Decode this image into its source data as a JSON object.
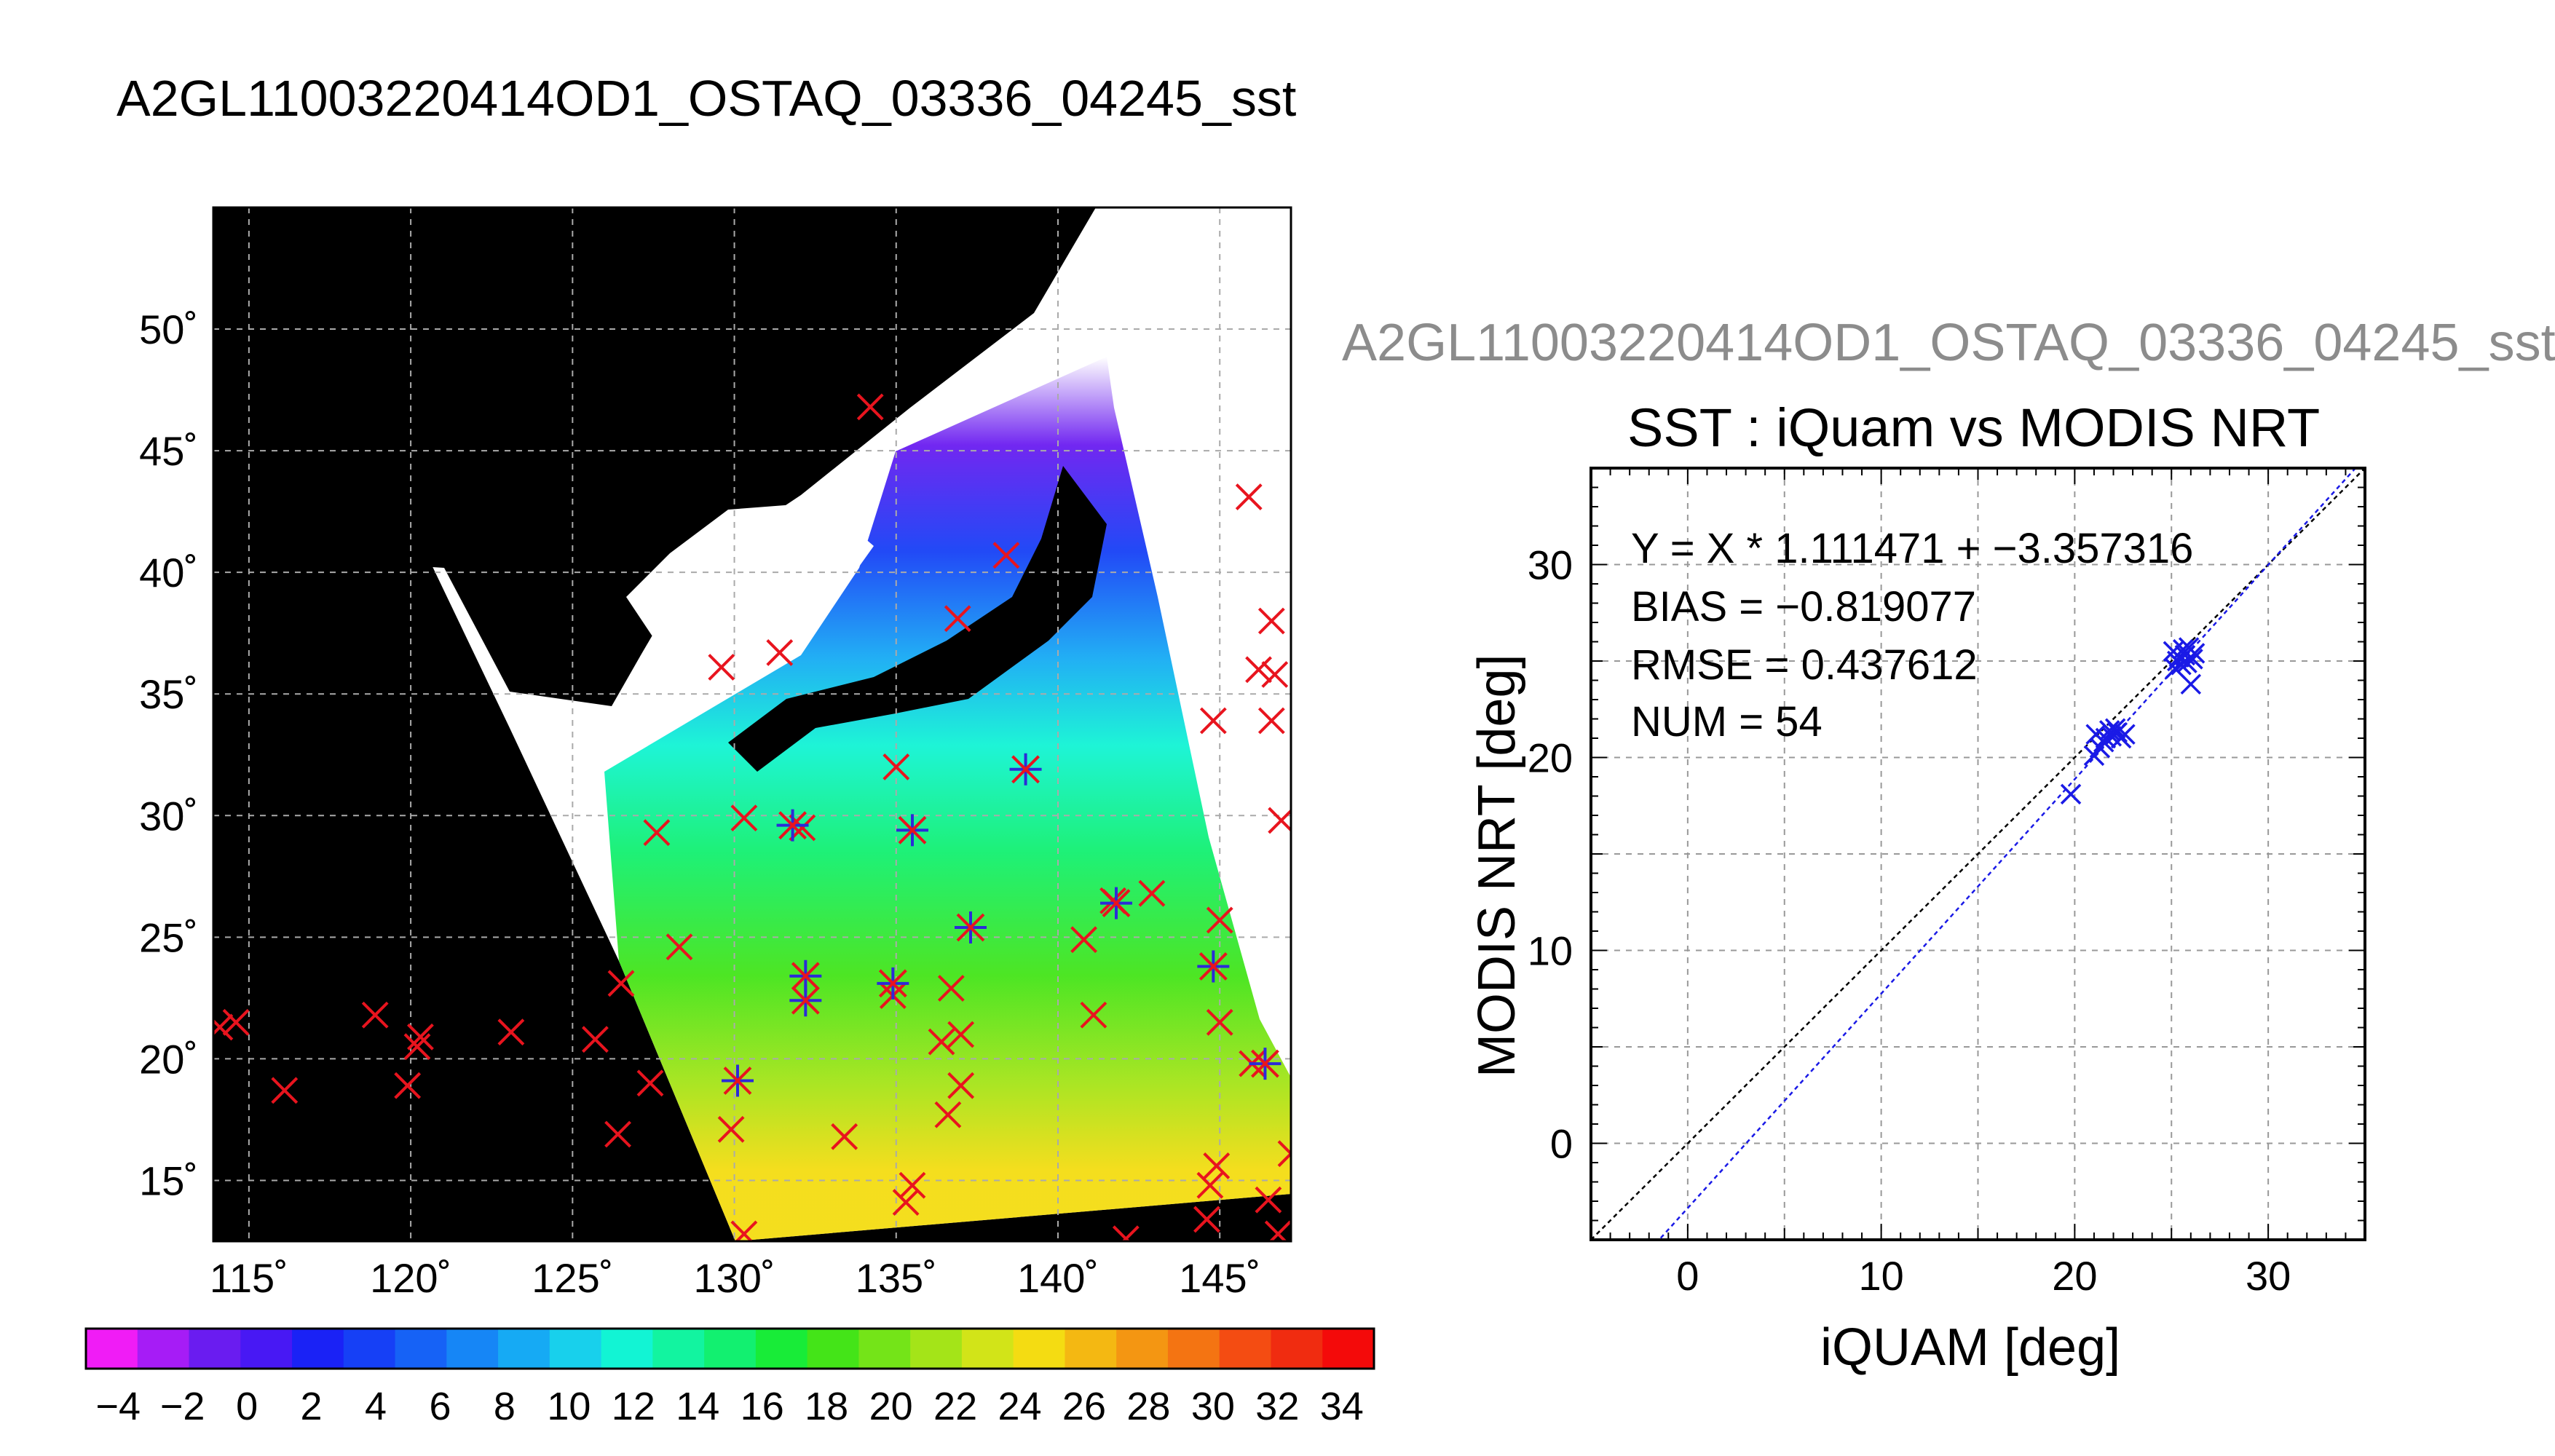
{
  "page_title": "A2GL11003220414OD1_OSTAQ_03336_04245_sst",
  "chart_data": [
    {
      "type": "heatmap",
      "title": "",
      "x_ticks": [
        "115˚",
        "120˚",
        "125˚",
        "130˚",
        "135˚",
        "140˚",
        "145˚"
      ],
      "x_tick_values": [
        115,
        120,
        125,
        130,
        135,
        140,
        145
      ],
      "y_ticks": [
        "50˚",
        "45˚",
        "40˚",
        "35˚",
        "30˚",
        "25˚",
        "20˚",
        "15˚"
      ],
      "y_tick_values": [
        50,
        45,
        40,
        35,
        30,
        25,
        20,
        15
      ],
      "xlim": [
        113.9,
        147.2
      ],
      "ylim": [
        12.5,
        55.0
      ],
      "grid": true,
      "colorbar": {
        "tick_labels": [
          "-4",
          "-2",
          "0",
          "2",
          "4",
          "6",
          "8",
          "10",
          "12",
          "14",
          "16",
          "18",
          "20",
          "22",
          "24",
          "26",
          "28",
          "30",
          "32",
          "34"
        ],
        "range": [
          -5,
          35
        ],
        "colors": [
          "#f01cf6",
          "#a61cf6",
          "#6a1cf0",
          "#4818f4",
          "#1a22f6",
          "#1640f6",
          "#1662f6",
          "#1686f6",
          "#16aaf4",
          "#18d0ec",
          "#12f4d4",
          "#12f4a0",
          "#12f070",
          "#18ec38",
          "#44e418",
          "#74e418",
          "#a4e418",
          "#d2e418",
          "#f4dc12",
          "#f4b812",
          "#f49612",
          "#f47412",
          "#f44c12",
          "#f02c10",
          "#f40a0a"
        ]
      },
      "iquam_points": [
        {
          "lon": 134.2,
          "lat": 46.8
        },
        {
          "lon": 145.9,
          "lat": 43.1
        },
        {
          "lon": 146.6,
          "lat": 38.0
        },
        {
          "lon": 138.4,
          "lat": 40.7
        },
        {
          "lon": 136.9,
          "lat": 38.1
        },
        {
          "lon": 129.6,
          "lat": 36.1
        },
        {
          "lon": 131.4,
          "lat": 36.7
        },
        {
          "lon": 146.2,
          "lat": 36.0
        },
        {
          "lon": 146.7,
          "lat": 35.8
        },
        {
          "lon": 144.8,
          "lat": 33.9
        },
        {
          "lon": 146.6,
          "lat": 33.9
        },
        {
          "lon": 135.0,
          "lat": 32.0
        },
        {
          "lon": 130.3,
          "lat": 29.9
        },
        {
          "lon": 132.1,
          "lat": 29.5
        },
        {
          "lon": 127.6,
          "lat": 29.3
        },
        {
          "lon": 146.9,
          "lat": 29.8
        },
        {
          "lon": 128.3,
          "lat": 24.6
        },
        {
          "lon": 140.8,
          "lat": 24.9
        },
        {
          "lon": 142.9,
          "lat": 26.8
        },
        {
          "lon": 141.7,
          "lat": 26.5
        },
        {
          "lon": 145.0,
          "lat": 25.7
        },
        {
          "lon": 126.5,
          "lat": 23.1
        },
        {
          "lon": 134.9,
          "lat": 22.6
        },
        {
          "lon": 136.7,
          "lat": 22.9
        },
        {
          "lon": 141.1,
          "lat": 21.8
        },
        {
          "lon": 145.0,
          "lat": 21.5
        },
        {
          "lon": 114.1,
          "lat": 21.3
        },
        {
          "lon": 118.9,
          "lat": 21.8
        },
        {
          "lon": 120.3,
          "lat": 20.9
        },
        {
          "lon": 123.1,
          "lat": 21.1
        },
        {
          "lon": 125.7,
          "lat": 20.8
        },
        {
          "lon": 136.4,
          "lat": 20.7
        },
        {
          "lon": 137.0,
          "lat": 21.0
        },
        {
          "lon": 116.1,
          "lat": 18.7
        },
        {
          "lon": 119.9,
          "lat": 18.9
        },
        {
          "lon": 127.4,
          "lat": 19.0
        },
        {
          "lon": 137.0,
          "lat": 18.9
        },
        {
          "lon": 136.6,
          "lat": 17.7
        },
        {
          "lon": 146.0,
          "lat": 19.8
        },
        {
          "lon": 126.4,
          "lat": 16.9
        },
        {
          "lon": 129.9,
          "lat": 17.1
        },
        {
          "lon": 133.4,
          "lat": 16.8
        },
        {
          "lon": 135.5,
          "lat": 14.8
        },
        {
          "lon": 135.3,
          "lat": 14.1
        },
        {
          "lon": 144.9,
          "lat": 15.6
        },
        {
          "lon": 144.7,
          "lat": 14.8
        },
        {
          "lon": 144.6,
          "lat": 13.4
        },
        {
          "lon": 146.5,
          "lat": 14.2
        },
        {
          "lon": 147.2,
          "lat": 16.1
        },
        {
          "lon": 146.8,
          "lat": 12.8
        },
        {
          "lon": 142.1,
          "lat": 12.6
        },
        {
          "lon": 130.3,
          "lat": 12.8
        },
        {
          "lon": 114.6,
          "lat": 21.5
        },
        {
          "lon": 120.2,
          "lat": 20.5
        }
      ],
      "matchup_points": [
        {
          "lon": 139.0,
          "lat": 31.9
        },
        {
          "lon": 131.8,
          "lat": 29.6
        },
        {
          "lon": 135.5,
          "lat": 29.4
        },
        {
          "lon": 137.3,
          "lat": 25.4
        },
        {
          "lon": 141.8,
          "lat": 26.4
        },
        {
          "lon": 132.2,
          "lat": 23.4
        },
        {
          "lon": 132.2,
          "lat": 22.4
        },
        {
          "lon": 134.9,
          "lat": 23.1
        },
        {
          "lon": 144.8,
          "lat": 23.8
        },
        {
          "lon": 130.1,
          "lat": 19.1
        },
        {
          "lon": 146.4,
          "lat": 19.8
        }
      ]
    },
    {
      "type": "scatter",
      "title": "SST : iQuam vs MODIS NRT",
      "xlabel": "iQUAM [deg]",
      "ylabel": "MODIS NRT [deg]",
      "xlim": [
        -5,
        35
      ],
      "ylim": [
        -5,
        35
      ],
      "x_ticks": [
        0,
        10,
        20,
        30
      ],
      "y_ticks": [
        0,
        10,
        20,
        30
      ],
      "grid": true,
      "series": [
        {
          "values": [
            [
              19.8,
              18.1
            ],
            [
              21.0,
              20.1
            ],
            [
              21.1,
              21.2
            ],
            [
              21.3,
              20.5
            ],
            [
              21.5,
              20.8
            ],
            [
              21.6,
              21.0
            ],
            [
              21.8,
              21.4
            ],
            [
              21.9,
              21.1
            ],
            [
              22.1,
              21.5
            ],
            [
              22.2,
              21.3
            ],
            [
              22.4,
              21.0
            ],
            [
              22.6,
              21.2
            ],
            [
              25.1,
              25.5
            ],
            [
              25.2,
              24.6
            ],
            [
              25.3,
              25.0
            ],
            [
              25.4,
              25.2
            ],
            [
              25.5,
              24.8
            ],
            [
              25.6,
              25.6
            ],
            [
              25.7,
              25.3
            ],
            [
              25.8,
              24.9
            ],
            [
              25.9,
              25.7
            ],
            [
              26.0,
              23.8
            ],
            [
              26.1,
              25.1
            ],
            [
              26.2,
              25.4
            ]
          ]
        }
      ],
      "annotations": [
        "Y = X * 1.111471 + −3.357316",
        "BIAS = −0.819077",
        "RMSE = 0.437612",
        "NUM = 54"
      ],
      "fit": {
        "slope": 1.111471,
        "intercept": -3.357316
      },
      "colors": {
        "points": "#1a1ae6",
        "fit": "#1a1ae6",
        "identity": "#000000"
      }
    }
  ],
  "subtitle": "A2GL11003220414OD1_OSTAQ_03336_04245_sst"
}
